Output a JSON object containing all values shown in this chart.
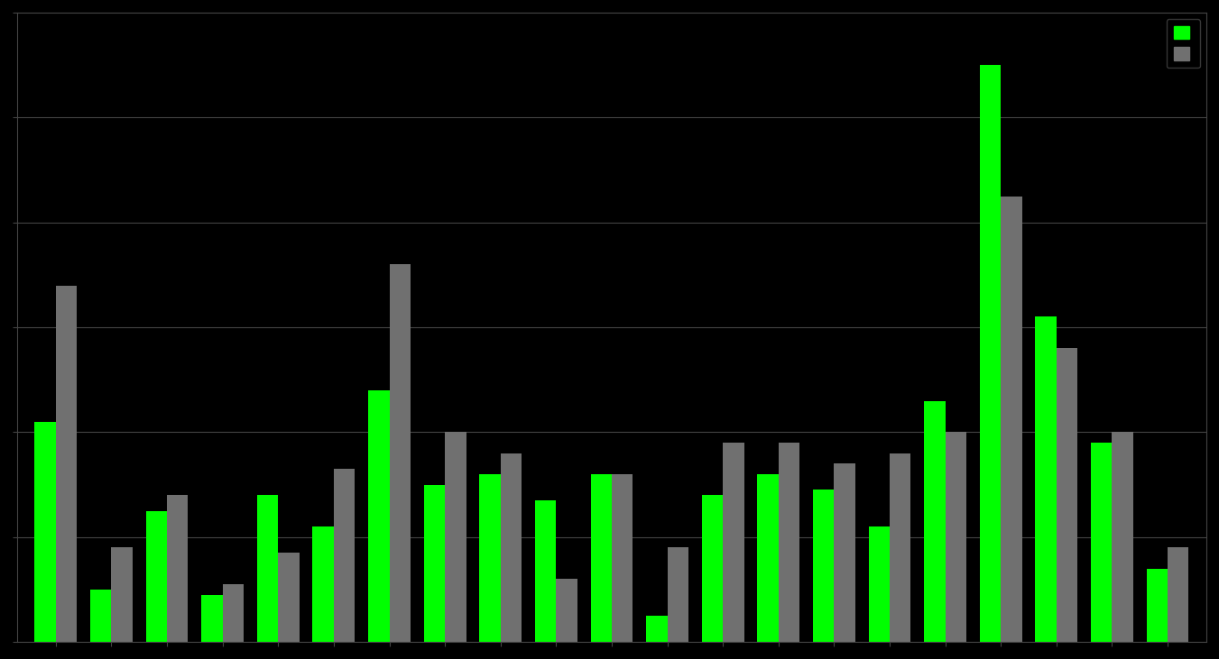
{
  "green_values": [
    4200,
    1000,
    2500,
    900,
    2800,
    2200,
    4800,
    3000,
    3200,
    2700,
    3200,
    500,
    2800,
    3200,
    2900,
    2200,
    4600,
    11000,
    6200,
    3800,
    1400
  ],
  "gray_values": [
    6800,
    1800,
    2800,
    1100,
    1700,
    3300,
    7200,
    4000,
    3600,
    1200,
    3200,
    1800,
    3800,
    3800,
    3400,
    3600,
    4000,
    8500,
    5600,
    4000,
    1800
  ],
  "bar_color_green": "#00FF00",
  "bar_color_gray": "#707070",
  "background_color": "#000000",
  "grid_color": "#444444",
  "text_color": "#ffffff",
  "ylim": [
    0,
    12000
  ],
  "legend_labels": [
    "",
    ""
  ],
  "bar_width": 0.38,
  "n_groups": 21
}
